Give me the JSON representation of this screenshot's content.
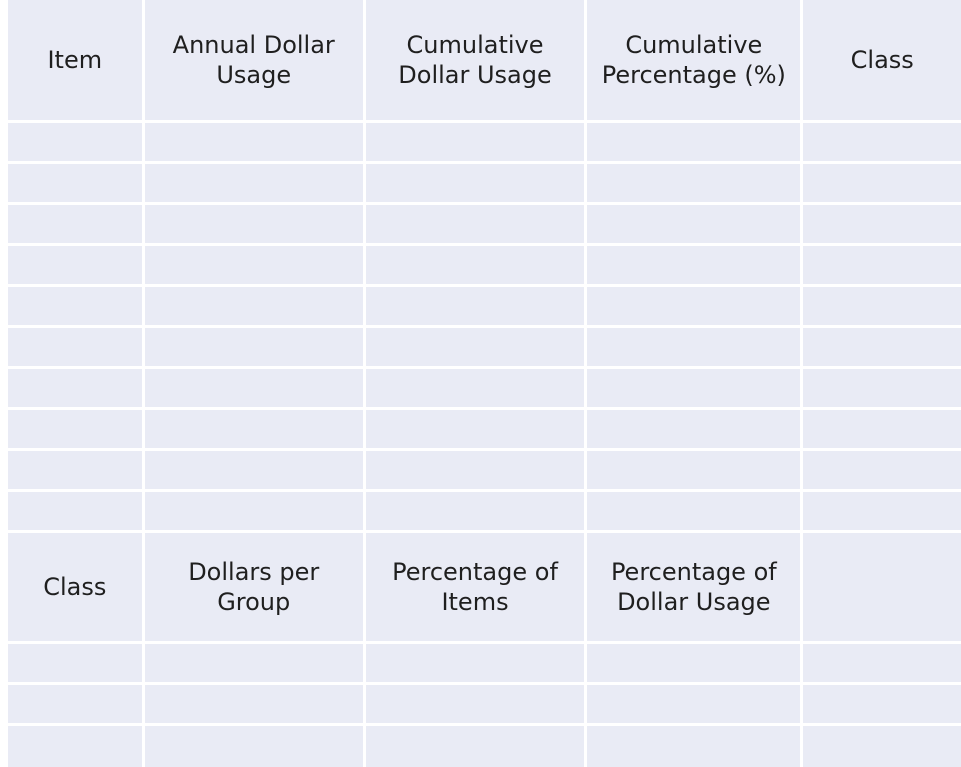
{
  "table1": {
    "headers": [
      "Item",
      "Annual Dollar\nUsage",
      "Cumulative\nDollar Usage",
      "Cumulative\nPercentage (%)",
      "Class"
    ],
    "rows": [
      [
        "",
        "",
        "",
        "",
        ""
      ],
      [
        "",
        "",
        "",
        "",
        ""
      ],
      [
        "",
        "",
        "",
        "",
        ""
      ],
      [
        "",
        "",
        "",
        "",
        ""
      ],
      [
        "",
        "",
        "",
        "",
        ""
      ],
      [
        "",
        "",
        "",
        "",
        ""
      ],
      [
        "",
        "",
        "",
        "",
        ""
      ],
      [
        "",
        "",
        "",
        "",
        ""
      ],
      [
        "",
        "",
        "",
        "",
        ""
      ],
      [
        "",
        "",
        "",
        "",
        ""
      ]
    ]
  },
  "table2": {
    "headers": [
      "Class",
      "Dollars per\nGroup",
      "Percentage of\nItems",
      "Percentage of\nDollar Usage",
      ""
    ],
    "rows": [
      [
        "",
        "",
        "",
        "",
        ""
      ],
      [
        "",
        "",
        "",
        "",
        ""
      ],
      [
        "",
        "",
        "",
        "",
        ""
      ]
    ]
  }
}
